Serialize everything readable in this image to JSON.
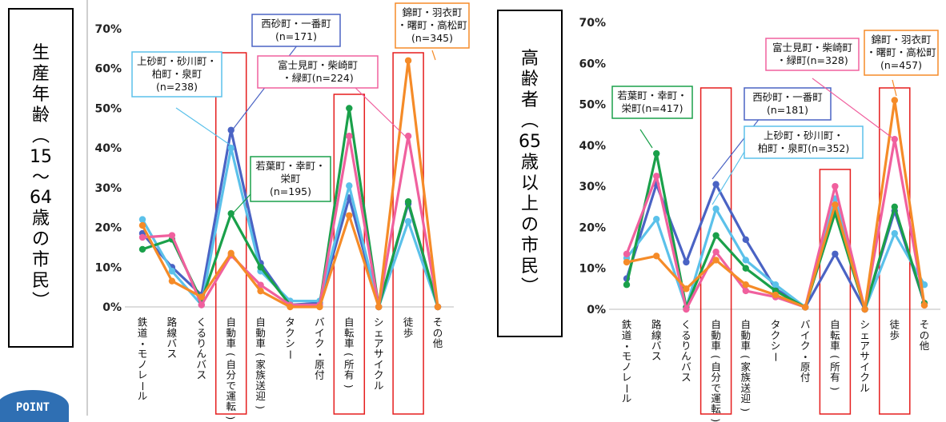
{
  "left_label": [
    "生",
    "産",
    "年",
    "齢",
    "︵",
    "15",
    "〜",
    "64",
    "歳",
    "の",
    "市",
    "民",
    "︶"
  ],
  "right_label": [
    "高",
    "齢",
    "者",
    "︵",
    "65",
    "歳",
    "以",
    "上",
    "の",
    "市",
    "民",
    "︶"
  ],
  "point_badge": "POINT",
  "colors": {
    "西砂": "#4a63c4",
    "上砂": "#5bc1ea",
    "若葉": "#1aa04a",
    "富士見": "#f0609e",
    "錦町": "#f58b28",
    "highlight": "#e51d1d"
  },
  "chart_data": [
    {
      "type": "line",
      "categories": [
        "鉄道・モノレール",
        "路線バス",
        "くるりんバス",
        "自動車(自分で運転)",
        "自動車(家族送迎)",
        "タクシー",
        "バイク・原付",
        "自転車(所有)",
        "シェアサイクル",
        "徒歩",
        "その他"
      ],
      "ylim": [
        0,
        70
      ],
      "yticks": [
        "0%",
        "10%",
        "20%",
        "30%",
        "40%",
        "50%",
        "60%",
        "70%"
      ],
      "highlighted_categories": [
        3,
        7,
        9
      ],
      "series": [
        {
          "name": "西砂町・一番町",
          "n": "(n=171)",
          "key": "西砂",
          "values": [
            18.5,
            10,
            3,
            44.5,
            11,
            0.5,
            1,
            27.5,
            0,
            26,
            0
          ]
        },
        {
          "name": "上砂町・砂川町・柏町・泉町",
          "n": "(n=238)",
          "key": "上砂",
          "values": [
            22,
            9,
            0.5,
            40,
            9,
            1.5,
            1.5,
            30.5,
            0,
            21.5,
            0
          ]
        },
        {
          "name": "若葉町・幸町・栄町",
          "n": "(n=195)",
          "key": "若葉",
          "values": [
            14.5,
            17,
            1.5,
            23.5,
            10,
            0.5,
            0.5,
            50,
            0,
            26.5,
            0
          ]
        },
        {
          "name": "富士見町・柴崎町・緑町",
          "n": "(n=224)",
          "key": "富士見",
          "values": [
            17.5,
            18,
            0.5,
            13,
            5.5,
            0.5,
            0.5,
            43,
            0,
            43,
            0
          ]
        },
        {
          "name": "錦町・羽衣町・曙町・高松町",
          "n": "(n=345)",
          "key": "錦町",
          "values": [
            20.5,
            6.5,
            2.5,
            13.5,
            4,
            0,
            0,
            23,
            0,
            62,
            0
          ]
        }
      ],
      "annotations": [
        {
          "key": "西砂",
          "lines": [
            "西砂町・一番町",
            "(n=171)"
          ]
        },
        {
          "key": "上砂",
          "lines": [
            "上砂町・砂川町・",
            "柏町・泉町",
            "(n=238)"
          ]
        },
        {
          "key": "富士見",
          "lines": [
            "富士見町・柴崎町",
            "・緑町(n=224)"
          ]
        },
        {
          "key": "錦町",
          "lines": [
            "錦町・羽衣町",
            "・曙町・高松町",
            "(n=345)"
          ]
        },
        {
          "key": "若葉",
          "lines": [
            "若葉町・幸町・",
            "栄町",
            "(n=195)"
          ]
        }
      ]
    },
    {
      "type": "line",
      "categories": [
        "鉄道・モノレール",
        "路線バス",
        "くるりんバス",
        "自動車(自分で運転)",
        "自動車(家族送迎)",
        "タクシー",
        "バイク・原付",
        "自転車(所有)",
        "シェアサイクル",
        "徒歩",
        "その他"
      ],
      "ylim": [
        0,
        70
      ],
      "yticks": [
        "0%",
        "10%",
        "20%",
        "30%",
        "40%",
        "50%",
        "60%",
        "70%"
      ],
      "highlighted_categories": [
        3,
        7,
        9
      ],
      "series": [
        {
          "name": "西砂町・一番町",
          "n": "(n=181)",
          "key": "西砂",
          "values": [
            7.5,
            30.5,
            11.5,
            30.5,
            17,
            5,
            0.5,
            13.5,
            0,
            24,
            1.5
          ]
        },
        {
          "name": "上砂町・砂川町・柏町・泉町",
          "n": "(n=352)",
          "key": "上砂",
          "values": [
            12.5,
            22,
            0.5,
            24.5,
            12,
            6,
            0.5,
            27,
            0,
            18.5,
            6
          ]
        },
        {
          "name": "若葉町・幸町・栄町",
          "n": "(n=417)",
          "key": "若葉",
          "values": [
            6,
            38,
            0.5,
            18,
            10,
            4.5,
            0.5,
            23.5,
            0,
            25,
            1.5
          ]
        },
        {
          "name": "富士見町・柴崎町・緑町",
          "n": "(n=328)",
          "key": "富士見",
          "values": [
            13.5,
            32.5,
            0,
            14,
            4.5,
            3,
            0.5,
            30,
            0,
            41.5,
            1
          ]
        },
        {
          "name": "錦町・羽衣町・曙町・高松町",
          "n": "(n=457)",
          "key": "錦町",
          "values": [
            11.5,
            13,
            5,
            12,
            6,
            3.5,
            0.5,
            25.5,
            0,
            51,
            1
          ]
        }
      ],
      "annotations": [
        {
          "key": "若葉",
          "lines": [
            "若葉町・幸町・",
            "栄町(n=417)"
          ]
        },
        {
          "key": "西砂",
          "lines": [
            "西砂町・一番町",
            "(n=181)"
          ]
        },
        {
          "key": "上砂",
          "lines": [
            "上砂町・砂川町・",
            "柏町・泉町(n=352)"
          ]
        },
        {
          "key": "富士見",
          "lines": [
            "富士見町・柴崎町",
            "・緑町(n=328)"
          ]
        },
        {
          "key": "錦町",
          "lines": [
            "錦町・羽衣町",
            "・曙町・高松町",
            "(n=457)"
          ]
        }
      ]
    }
  ]
}
